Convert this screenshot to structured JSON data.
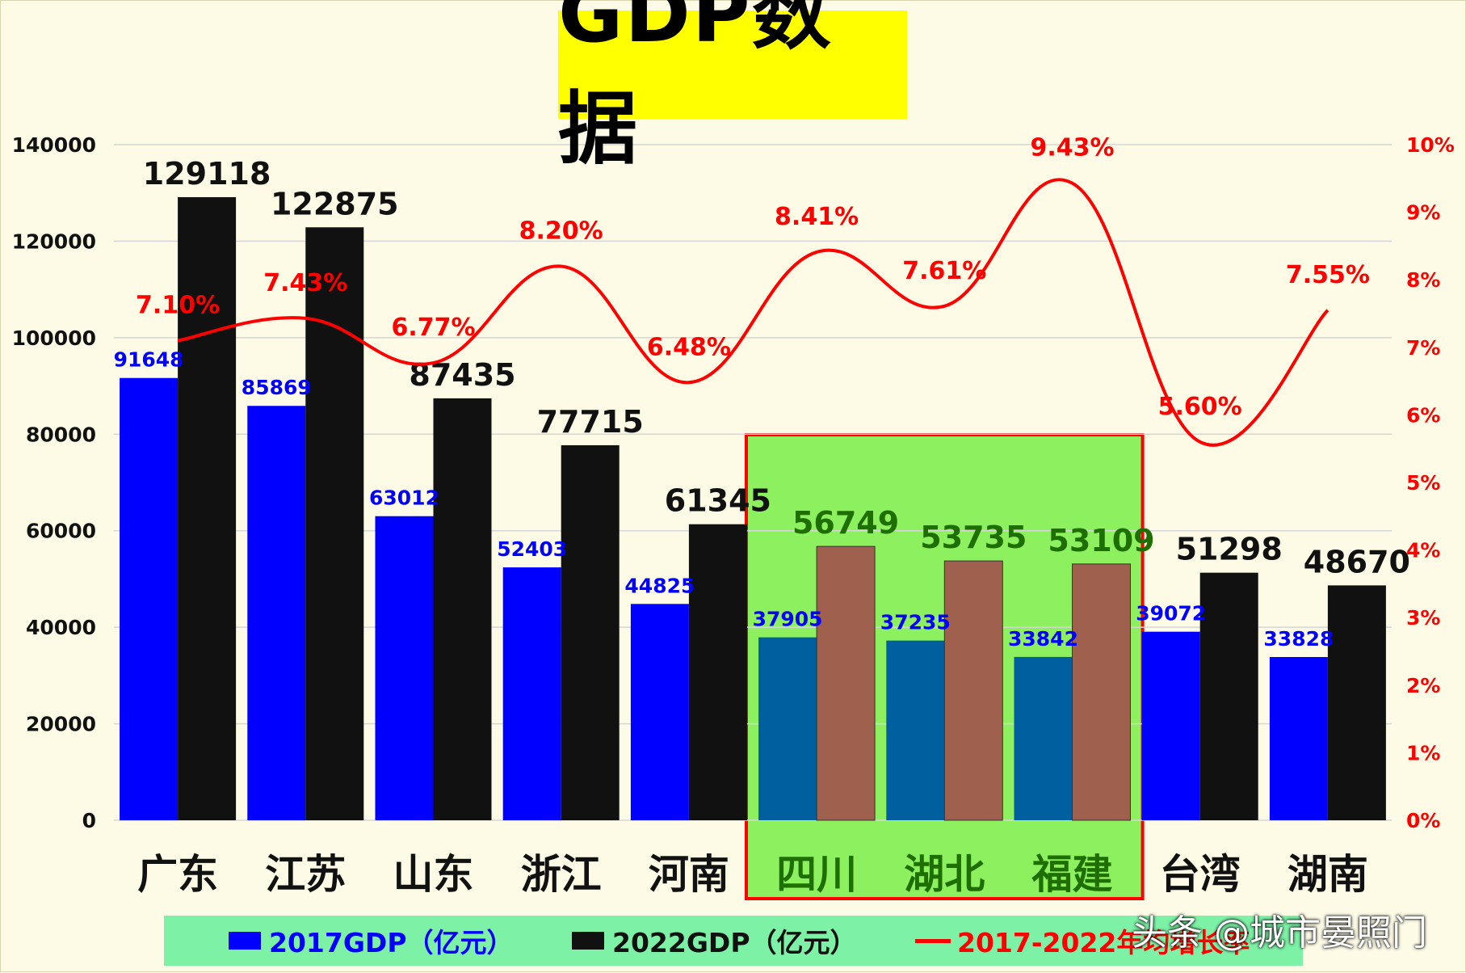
{
  "title": "GDP数据",
  "watermark": "头条 @城市晏照门",
  "colors": {
    "bar2017": "#0000ff",
    "bar2022": "#111111",
    "bar2017_highlight": "#005f9e",
    "bar2022_highlight": "#a0604e",
    "line": "#ff0000",
    "highlight_fill": "#8cf05f",
    "highlight_border": "#ff0000",
    "label2017": "#0000ff",
    "label2022": "#111111",
    "label_highlight": "#1e6e00"
  },
  "legend": [
    {
      "label": "2017GDP（亿元）",
      "kind": "swatch",
      "color": "#0000ff"
    },
    {
      "label": "2022GDP（亿元）",
      "kind": "swatch",
      "color": "#111111"
    },
    {
      "label": "2017-2022年均增长率",
      "kind": "line",
      "color": "#ff0000"
    }
  ],
  "chart_data": {
    "type": "bar",
    "categories": [
      "广东",
      "江苏",
      "山东",
      "浙江",
      "河南",
      "四川",
      "湖北",
      "福建",
      "台湾",
      "湖南"
    ],
    "highlighted_categories": [
      "四川",
      "湖北",
      "福建"
    ],
    "series": [
      {
        "name": "2017GDP（亿元）",
        "type": "bar",
        "axis": "left",
        "values": [
          91648,
          85869,
          63012,
          52403,
          44825,
          37905,
          37235,
          33842,
          39072,
          33828
        ]
      },
      {
        "name": "2022GDP（亿元）",
        "type": "bar",
        "axis": "left",
        "values": [
          129118,
          122875,
          87435,
          77715,
          61345,
          56749,
          53735,
          53109,
          51298,
          48670
        ]
      },
      {
        "name": "2017-2022年均增长率",
        "type": "line",
        "axis": "right",
        "values": [
          7.1,
          7.43,
          6.77,
          8.2,
          6.48,
          8.41,
          7.61,
          9.43,
          5.6,
          7.55
        ],
        "labels": [
          "7.10%",
          "7.43%",
          "6.77%",
          "8.20%",
          "6.48%",
          "8.41%",
          "7.61%",
          "9.43%",
          "5.60%",
          "7.55%"
        ]
      }
    ],
    "ylim": [
      0,
      140000
    ],
    "yticks": [
      0,
      20000,
      40000,
      60000,
      80000,
      100000,
      120000,
      140000
    ],
    "y2lim": [
      0,
      10
    ],
    "y2ticks": [
      "0%",
      "1%",
      "2%",
      "3%",
      "4%",
      "5%",
      "6%",
      "7%",
      "8%",
      "9%",
      "10%"
    ],
    "grid": true,
    "legend_position": "bottom"
  }
}
